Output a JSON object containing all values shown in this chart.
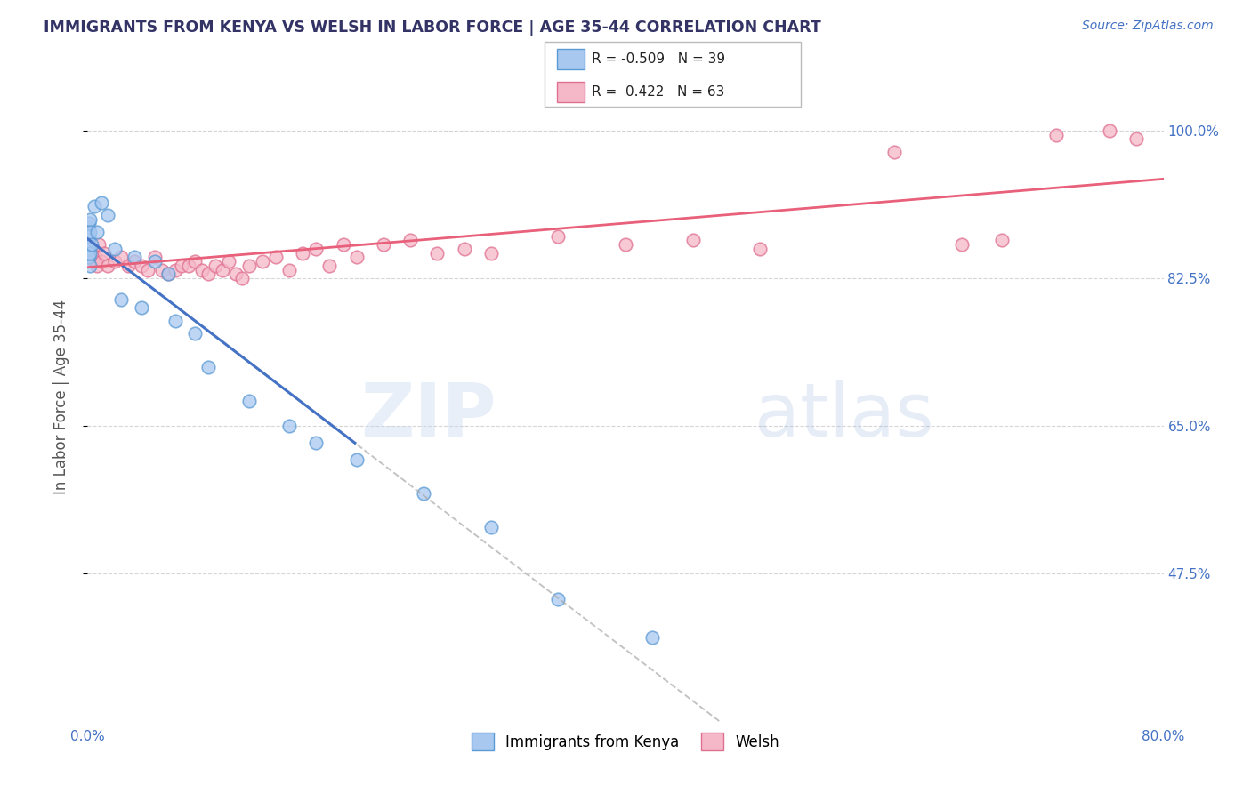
{
  "title": "IMMIGRANTS FROM KENYA VS WELSH IN LABOR FORCE | AGE 35-44 CORRELATION CHART",
  "source": "Source: ZipAtlas.com",
  "ylabel": "In Labor Force | Age 35-44",
  "x_min": 0.0,
  "x_max": 80.0,
  "y_min": 30.0,
  "y_max": 107.0,
  "y_ticks": [
    47.5,
    65.0,
    82.5,
    100.0
  ],
  "x_tick_labels": [
    "0.0%",
    "",
    "",
    "",
    "80.0%"
  ],
  "y_tick_labels": [
    "47.5%",
    "65.0%",
    "82.5%",
    "100.0%"
  ],
  "kenya_color": "#A8C8F0",
  "welsh_color": "#F5B8C8",
  "kenya_edge_color": "#5B9BD5",
  "welsh_edge_color": "#E07090",
  "trend_kenya_color": "#4472C4",
  "trend_welsh_color": "#E8607A",
  "R_kenya": -0.509,
  "N_kenya": 39,
  "R_welsh": 0.422,
  "N_welsh": 63,
  "legend_kenya": "Immigrants from Kenya",
  "legend_welsh": "Welsh",
  "kenya_x": [
    0.05,
    0.05,
    0.05,
    0.05,
    0.05,
    0.06,
    0.06,
    0.07,
    0.07,
    0.08,
    0.1,
    0.1,
    0.12,
    0.15,
    0.15,
    0.2,
    0.2,
    0.3,
    0.5,
    0.7,
    1.0,
    1.5,
    2.0,
    3.5,
    5.0,
    6.0,
    2.5,
    4.0,
    6.5,
    8.0,
    9.0,
    12.0,
    15.0,
    17.0,
    20.0,
    25.0,
    30.0,
    35.0,
    42.0
  ],
  "kenya_y": [
    88.0,
    87.0,
    86.5,
    86.0,
    85.5,
    87.5,
    86.0,
    88.5,
    87.0,
    86.0,
    89.0,
    85.0,
    87.5,
    89.5,
    84.0,
    88.0,
    85.5,
    86.5,
    91.0,
    88.0,
    91.5,
    90.0,
    86.0,
    85.0,
    84.5,
    83.0,
    80.0,
    79.0,
    77.5,
    76.0,
    72.0,
    68.0,
    65.0,
    63.0,
    61.0,
    57.0,
    53.0,
    44.5,
    40.0
  ],
  "welsh_x": [
    0.05,
    0.05,
    0.06,
    0.07,
    0.08,
    0.1,
    0.1,
    0.12,
    0.15,
    0.2,
    0.3,
    0.4,
    0.5,
    0.6,
    0.7,
    0.8,
    1.0,
    1.2,
    1.5,
    2.0,
    2.5,
    3.0,
    3.5,
    4.0,
    4.5,
    5.0,
    5.5,
    6.0,
    6.5,
    7.0,
    7.5,
    8.0,
    8.5,
    9.0,
    9.5,
    10.0,
    10.5,
    11.0,
    11.5,
    12.0,
    13.0,
    14.0,
    15.0,
    16.0,
    17.0,
    18.0,
    19.0,
    20.0,
    22.0,
    24.0,
    26.0,
    28.0,
    30.0,
    35.0,
    40.0,
    45.0,
    50.0,
    60.0,
    65.0,
    68.0,
    72.0,
    76.0,
    78.0
  ],
  "welsh_y": [
    85.5,
    86.0,
    85.0,
    86.5,
    85.5,
    87.0,
    85.0,
    86.0,
    85.5,
    85.0,
    85.5,
    86.0,
    84.5,
    85.0,
    84.0,
    86.5,
    84.5,
    85.5,
    84.0,
    84.5,
    85.0,
    84.0,
    84.5,
    84.0,
    83.5,
    85.0,
    83.5,
    83.0,
    83.5,
    84.0,
    84.0,
    84.5,
    83.5,
    83.0,
    84.0,
    83.5,
    84.5,
    83.0,
    82.5,
    84.0,
    84.5,
    85.0,
    83.5,
    85.5,
    86.0,
    84.0,
    86.5,
    85.0,
    86.5,
    87.0,
    85.5,
    86.0,
    85.5,
    87.5,
    86.5,
    87.0,
    86.0,
    97.5,
    86.5,
    87.0,
    99.5,
    100.0,
    99.0
  ],
  "watermark_zip": "ZIP",
  "watermark_atlas": "atlas",
  "background_color": "#FFFFFF",
  "grid_color": "#CCCCCC",
  "title_color": "#333366",
  "axis_label_color": "#555555",
  "tick_color": "#4472C4",
  "source_color": "#4472C4",
  "kenya_trend_x0": 0.0,
  "kenya_trend_x_solid_end": 20.0,
  "welsh_trend_x0": 0.0,
  "welsh_trend_x_solid_end": 80.0
}
